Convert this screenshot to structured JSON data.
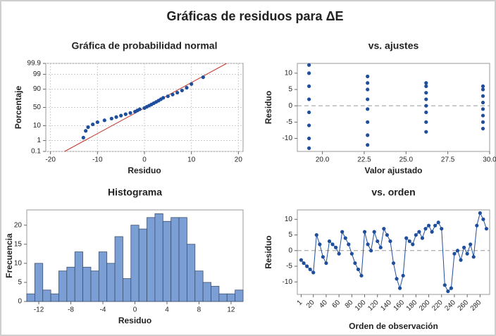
{
  "title": "Gráficas de residuos para ΔE",
  "chart_data": [
    {
      "type": "scatter",
      "title": "Gráfica de probabilidad normal",
      "xlabel": "Residuo",
      "ylabel": "Porcentaje",
      "yscale": "probability",
      "grid": true,
      "color": "#1f4e9c",
      "x": [
        -13,
        -12.5,
        -12,
        -11,
        -10,
        -8.5,
        -7,
        -6,
        -5,
        -4,
        -3,
        -2,
        -1.5,
        -1,
        0,
        0.5,
        1,
        1.5,
        2,
        2.5,
        3,
        3.5,
        4,
        5,
        6,
        7,
        8,
        9,
        10,
        12.5
      ],
      "values": [
        1.7,
        5,
        8.3,
        11.7,
        15,
        18.3,
        21.7,
        25,
        28.3,
        31.7,
        35,
        38.3,
        41.7,
        45,
        48.3,
        51.7,
        55,
        58.3,
        61.7,
        65,
        68.3,
        71.7,
        75,
        78.3,
        81.7,
        85,
        88.3,
        91.7,
        95,
        98.3
      ],
      "fit_line": {
        "color": "#c0392b",
        "x": [
          -17,
          17.5
        ],
        "y": [
          0.1,
          99.9
        ]
      },
      "xlim": [
        -21,
        21
      ],
      "xticks": [
        -20,
        -10,
        0,
        10,
        20
      ],
      "ylim": [
        0.1,
        99.9
      ],
      "yticks": [
        0.1,
        1,
        10,
        50,
        90,
        99,
        99.9
      ]
    },
    {
      "type": "scatter",
      "title": "vs. ajustes",
      "xlabel": "Valor ajustado",
      "ylabel": "Residuo",
      "color": "#1f4e9c",
      "hline": 0,
      "x": [
        19.2,
        19.2,
        19.2,
        19.2,
        19.2,
        19.2,
        19.2,
        19.2,
        22.7,
        22.7,
        22.7,
        22.7,
        22.7,
        22.7,
        22.7,
        22.7,
        26.2,
        26.2,
        26.2,
        26.2,
        26.2,
        26.2,
        26.2,
        26.2,
        29.6,
        29.6,
        29.6,
        29.6,
        29.6,
        29.6,
        29.6,
        29.6
      ],
      "values": [
        -13,
        -10,
        -6,
        -2,
        2,
        6,
        10,
        12.5,
        -12,
        -9,
        -5,
        -1,
        2,
        5,
        7,
        9,
        -8,
        -5,
        -2,
        0,
        2,
        4,
        6,
        7,
        -7,
        -5,
        -3,
        -1,
        1,
        3,
        5,
        6
      ],
      "xlim": [
        18.5,
        30
      ],
      "xticks": [
        {
          "value": 20,
          "label": "20.0"
        },
        22.5,
        {
          "value": 25,
          "label": "25.0"
        },
        27.5,
        {
          "value": 30,
          "label": "30.0"
        }
      ],
      "ylim": [
        -14,
        13
      ],
      "yticks": [
        -10,
        -5,
        0,
        5,
        10
      ]
    },
    {
      "type": "histogram",
      "title": "Histograma",
      "xlabel": "Residuo",
      "ylabel": "Frecuencia",
      "color": "#7b9fd4",
      "bins": [
        -13.5,
        -12.5,
        -11.5,
        -10.5,
        -9.5,
        -8.5,
        -7.5,
        -6.5,
        -5.5,
        -4.5,
        -3.5,
        -2.5,
        -1.5,
        -0.5,
        0.5,
        1.5,
        2.5,
        3.5,
        4.5,
        5.5,
        6.5,
        7.5,
        8.5,
        9.5,
        10.5,
        11.5,
        12.5,
        13.5
      ],
      "values": [
        2,
        10,
        3,
        2,
        8,
        9,
        13,
        9,
        8,
        13,
        10,
        17,
        6,
        20,
        19,
        22,
        23,
        21,
        22,
        22,
        15,
        8,
        5,
        4,
        2,
        2,
        3
      ],
      "xlim": [
        -13.5,
        13.5
      ],
      "xticks": [
        -12,
        -8,
        -4,
        0,
        4,
        8,
        12
      ],
      "ylim": [
        0,
        24
      ],
      "yticks": [
        0,
        5,
        10,
        15,
        20
      ]
    },
    {
      "type": "line",
      "title": "vs. orden",
      "xlabel": "Orden de observación",
      "ylabel": "Residuo",
      "color": "#1f4e9c",
      "hline": 0,
      "xtick_rotation": -45,
      "x": [
        1,
        5,
        10,
        15,
        20,
        25,
        30,
        35,
        40,
        45,
        50,
        55,
        60,
        65,
        70,
        75,
        80,
        85,
        90,
        95,
        100,
        105,
        110,
        115,
        120,
        125,
        130,
        135,
        140,
        145,
        150,
        155,
        160,
        165,
        170,
        175,
        180,
        185,
        190,
        195,
        200,
        205,
        210,
        215,
        220,
        225,
        230,
        235,
        240,
        245,
        250,
        255,
        260,
        265,
        270,
        275,
        280,
        285,
        290
      ],
      "values": [
        -3,
        -4,
        -5,
        -6,
        -7,
        5,
        2,
        -2,
        -4,
        3,
        2,
        1,
        -1,
        6,
        4,
        2,
        -1,
        -4,
        -6,
        -8,
        6,
        2,
        0,
        6,
        3,
        1,
        7,
        5,
        3,
        -4,
        -9,
        -12,
        -8,
        4,
        3,
        2,
        5,
        6,
        4,
        7,
        8,
        6,
        8,
        9,
        7,
        -11,
        -13,
        -12,
        -1,
        0,
        -3,
        1,
        -1,
        2,
        -2,
        8,
        12,
        10,
        7
      ],
      "xlim": [
        -5,
        295
      ],
      "xticks": [
        1,
        20,
        40,
        60,
        80,
        100,
        120,
        140,
        160,
        180,
        200,
        220,
        240,
        260,
        280
      ],
      "ylim": [
        -14,
        13
      ],
      "yticks": [
        -10,
        -5,
        0,
        5,
        10
      ]
    }
  ]
}
